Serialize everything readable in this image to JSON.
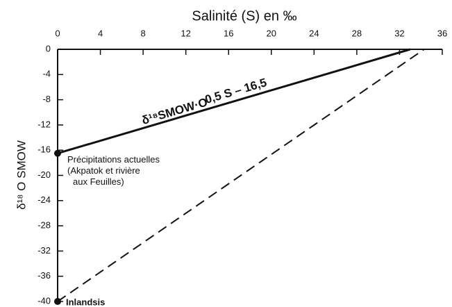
{
  "chart_data": {
    "type": "line",
    "xlabel": "Salinité (S) en ‰",
    "ylabel": "δ¹⁸ O SMOW",
    "xlim": [
      0,
      36
    ],
    "xticks": [
      0,
      4,
      8,
      12,
      16,
      20,
      24,
      28,
      32,
      36
    ],
    "ylim": [
      -40,
      0
    ],
    "yticks": [
      0,
      -4,
      -8,
      -12,
      -16,
      -20,
      -24,
      -28,
      -32,
      -36,
      -40
    ],
    "series": [
      {
        "color": "#111111",
        "dash": false,
        "x": [
          0,
          33
        ],
        "values": [
          -16.5,
          0
        ]
      },
      {
        "color": "#111111",
        "dash": true,
        "x": [
          0,
          34.3
        ],
        "values": [
          -40,
          0
        ]
      }
    ],
    "points": [
      {
        "x": 0,
        "y": -16.5,
        "label": [
          "Précipitations actuelles",
          "(Akpatok et rivière",
          "aux Feuilles)"
        ]
      },
      {
        "x": 0,
        "y": -40,
        "label": [
          "Inlandsis"
        ]
      }
    ],
    "annotations": [
      "δ¹⁸SMOW·O",
      "0,5 S – 16,5"
    ]
  }
}
